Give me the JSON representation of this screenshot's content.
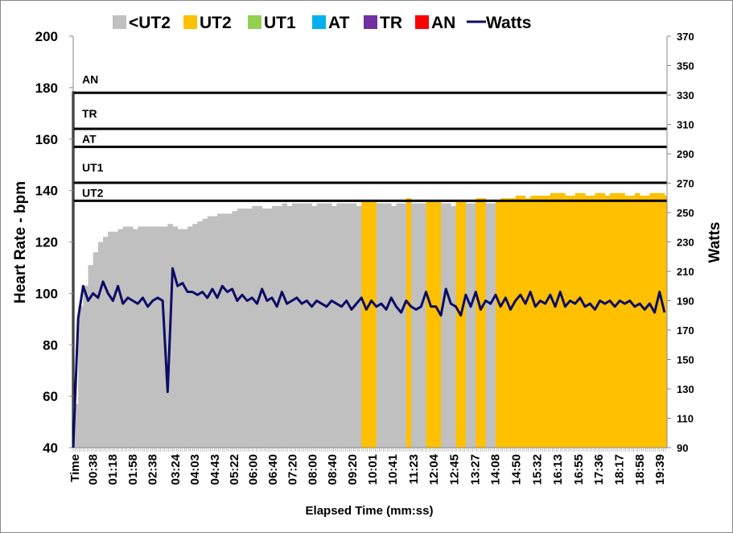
{
  "chart_data": {
    "type": "area",
    "title": "",
    "xlabel": "Elapsed Time (mm:ss)",
    "ylabel": "Heart Rate - bpm",
    "y2label": "Watts",
    "ylim": [
      40,
      200
    ],
    "y2lim": [
      90,
      370
    ],
    "yticks": [
      40,
      60,
      80,
      100,
      120,
      140,
      160,
      180,
      200
    ],
    "y2ticks": [
      90,
      110,
      130,
      150,
      170,
      190,
      210,
      230,
      250,
      270,
      290,
      310,
      330,
      350,
      370
    ],
    "xlim_seconds": [
      0,
      1195
    ],
    "first_tick_label": "Time",
    "xtick_labels": [
      "00:38",
      "01:18",
      "01:58",
      "02:38",
      "03:24",
      "04:03",
      "04:43",
      "05:22",
      "06:00",
      "06:40",
      "07:20",
      "08:00",
      "08:40",
      "09:20",
      "10:01",
      "10:41",
      "11:23",
      "12:04",
      "12:45",
      "13:27",
      "14:08",
      "14:50",
      "15:32",
      "16:13",
      "16:55",
      "17:36",
      "18:17",
      "18:58",
      "19:39"
    ],
    "legend_position": "top",
    "legend": [
      {
        "name": "<UT2",
        "color": "#c0c0c0",
        "kind": "area"
      },
      {
        "name": "UT2",
        "color": "#ffc000",
        "kind": "area"
      },
      {
        "name": "UT1",
        "color": "#92d050",
        "kind": "area"
      },
      {
        "name": "AT",
        "color": "#00b0f0",
        "kind": "area"
      },
      {
        "name": "TR",
        "color": "#7030a0",
        "kind": "area"
      },
      {
        "name": "AN",
        "color": "#ff0000",
        "kind": "area"
      },
      {
        "name": "Watts",
        "color": "#0c0c66",
        "kind": "line"
      }
    ],
    "zones": [
      {
        "name": "UT2",
        "bpm": 136
      },
      {
        "name": "UT1",
        "bpm": 143
      },
      {
        "name": "AT",
        "bpm": 157
      },
      {
        "name": "TR",
        "bpm": 164
      },
      {
        "name": "AN",
        "bpm": 178
      }
    ],
    "sample_interval_s": 10,
    "heart_rate": [
      57,
      95,
      103,
      111,
      116,
      120,
      122,
      124,
      124,
      125,
      126,
      126,
      125,
      126,
      126,
      126,
      126,
      126,
      126,
      127,
      126,
      125,
      125,
      126,
      127,
      128,
      129,
      130,
      130,
      131,
      131,
      131,
      132,
      133,
      133,
      133,
      134,
      134,
      133,
      133,
      134,
      134,
      135,
      134,
      135,
      135,
      135,
      135,
      134,
      135,
      135,
      135,
      134,
      135,
      135,
      135,
      135,
      134,
      136,
      136,
      136,
      135,
      135,
      135,
      134,
      135,
      135,
      137,
      135,
      135,
      135,
      136,
      136,
      136,
      135,
      135,
      134,
      136,
      136,
      135,
      135,
      137,
      137,
      135,
      135,
      136,
      137,
      137,
      137,
      138,
      138,
      137,
      138,
      138,
      138,
      138,
      139,
      139,
      139,
      138,
      138,
      139,
      139,
      138,
      138,
      139,
      139,
      138,
      139,
      139,
      139,
      138,
      138,
      139,
      138,
      138,
      139,
      139,
      139,
      138
    ],
    "watts": [
      90,
      178,
      200,
      190,
      195,
      192,
      203,
      195,
      190,
      200,
      188,
      192,
      190,
      188,
      192,
      186,
      190,
      192,
      190,
      128,
      212,
      200,
      202,
      196,
      196,
      194,
      196,
      192,
      198,
      192,
      200,
      196,
      198,
      190,
      194,
      190,
      192,
      188,
      198,
      190,
      192,
      186,
      196,
      188,
      190,
      192,
      188,
      190,
      186,
      190,
      188,
      186,
      190,
      188,
      186,
      190,
      184,
      188,
      192,
      184,
      190,
      186,
      188,
      184,
      192,
      186,
      182,
      190,
      186,
      184,
      186,
      196,
      186,
      186,
      180,
      198,
      188,
      186,
      180,
      194,
      186,
      196,
      184,
      190,
      188,
      194,
      186,
      192,
      184,
      190,
      194,
      188,
      196,
      186,
      190,
      188,
      194,
      186,
      196,
      186,
      190,
      188,
      192,
      186,
      188,
      184,
      190,
      188,
      190,
      186,
      190,
      188,
      190,
      186,
      188,
      184,
      188,
      182,
      196,
      182
    ]
  }
}
